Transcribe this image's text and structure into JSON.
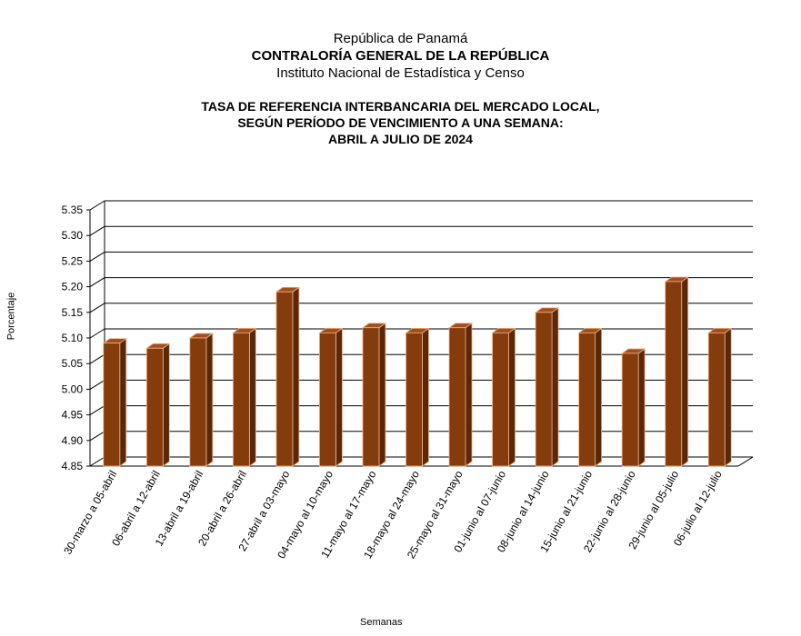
{
  "header": {
    "line1": "República de Panamá",
    "line2": "CONTRALORÍA GENERAL DE LA REPÚBLICA",
    "line3": "Instituto  Nacional de Estadística y Censo"
  },
  "chart_data": {
    "type": "bar",
    "title_lines": [
      "TASA DE REFERENCIA INTERBANCARIA DEL MERCADO LOCAL,",
      "SEGÚN PERÍODO DE VENCIMIENTO A UNA SEMANA:",
      "ABRIL A JULIO DE 2024"
    ],
    "xlabel": "Semanas",
    "ylabel": "Porcentaje",
    "ylim": [
      4.85,
      5.35
    ],
    "yticks": [
      "4.85",
      "4.90",
      "4.95",
      "5.00",
      "5.05",
      "5.10",
      "5.15",
      "5.20",
      "5.25",
      "5.30",
      "5.35"
    ],
    "grid": true,
    "categories": [
      "30-marzo a 05-abril",
      "06-abril a 12-abril",
      "13-abril a 19-abril",
      "20-abril a 26-abril",
      "27-abril a 03-mayo",
      "04-mayo al 10-mayo",
      "11-mayo al 17-mayo",
      "18-mayo al 24-mayo",
      "25-mayo al 31-mayo",
      "01-junio al 07-junio",
      "08-junio al 14-junio",
      "15-junio al 21-junio",
      "22-junio al 28-junio",
      "29-junio al 05-julio",
      "06-julio al 12-julio"
    ],
    "values": [
      5.09,
      5.08,
      5.1,
      5.11,
      5.19,
      5.11,
      5.12,
      5.11,
      5.12,
      5.11,
      5.15,
      5.11,
      5.07,
      5.21,
      5.11
    ],
    "colors": {
      "bar_front": "#843c0c",
      "bar_side": "#5a2808",
      "bar_top": "#a0501c",
      "bar_edge": "#f4b183"
    }
  }
}
